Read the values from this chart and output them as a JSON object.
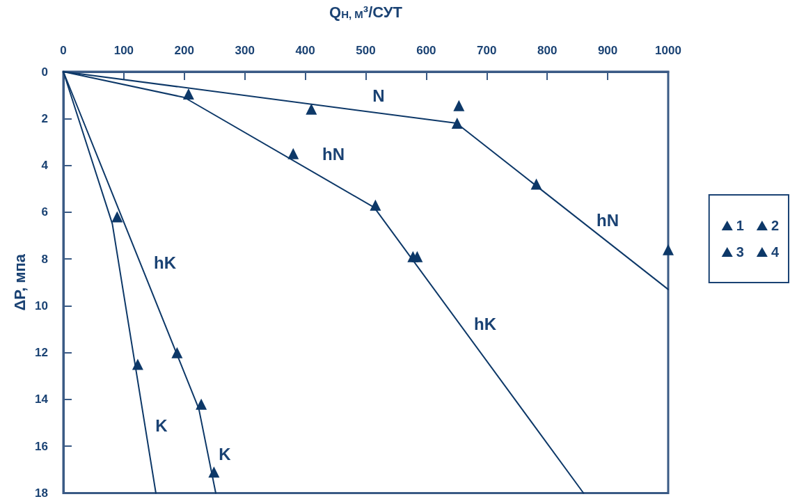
{
  "chart_data": {
    "type": "line",
    "xlabel": "Q$_{Н, М}$³/СУТ",
    "ylabel": "ΔР, мпа",
    "xlim": [
      0,
      1000
    ],
    "xticks": [
      0,
      100,
      200,
      300,
      400,
      500,
      600,
      700,
      800,
      900,
      1000
    ],
    "ylim": [
      18,
      0
    ],
    "yticks": [
      0,
      2,
      4,
      6,
      8,
      10,
      12,
      14,
      16,
      18
    ],
    "grid": false,
    "legend": "right",
    "series": [
      {
        "marker": "none",
        "color": "#0d3868",
        "x": [
          0,
          650,
          1000
        ],
        "values": [
          0,
          2.2,
          9.3
        ]
      },
      {
        "marker": "none",
        "color": "#0d3868",
        "x": [
          0,
          200,
          514,
          860
        ],
        "values": [
          0,
          1.1,
          5.8,
          18
        ]
      },
      {
        "marker": "none",
        "color": "#0d3868",
        "x": [
          0,
          81,
          153
        ],
        "values": [
          0,
          6.5,
          18
        ]
      },
      {
        "marker": "none",
        "color": "#0d3868",
        "x": [
          0,
          224,
          252
        ],
        "values": [
          0,
          14.4,
          18
        ]
      },
      {
        "type": "scatter",
        "name": "1",
        "marker": "triangle",
        "color": "#0d3868",
        "x": [
          410,
          654,
          651,
          782,
          1000
        ],
        "values": [
          1.6,
          1.45,
          2.2,
          4.8,
          7.6
        ]
      },
      {
        "type": "scatter",
        "name": "2",
        "marker": "triangle",
        "color": "#0d3868",
        "x": [
          207,
          380,
          516,
          578,
          585
        ],
        "values": [
          0.95,
          3.5,
          5.7,
          7.9,
          7.9
        ]
      },
      {
        "type": "scatter",
        "name": "3",
        "marker": "triangle",
        "color": "#0d3868",
        "x": [
          89,
          123
        ],
        "values": [
          6.2,
          12.5
        ]
      },
      {
        "type": "scatter",
        "name": "4",
        "marker": "triangle",
        "color": "#0d3868",
        "x": [
          188,
          228,
          249
        ],
        "values": [
          12,
          14.2,
          17.1
        ]
      }
    ],
    "annotations": [
      "N",
      "hN",
      "hN",
      "hK",
      "hK",
      "K",
      "K"
    ]
  }
}
